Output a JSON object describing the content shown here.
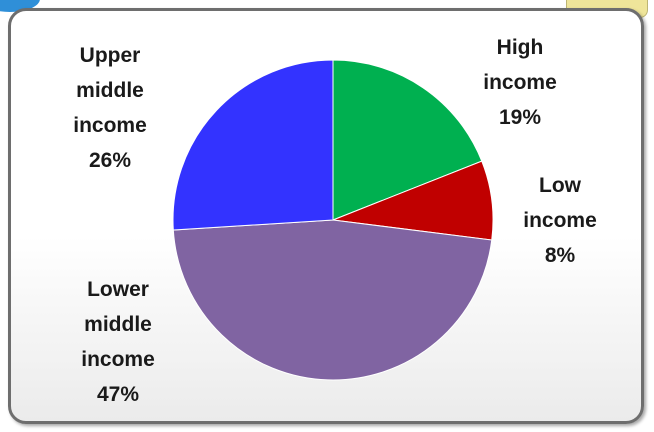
{
  "chart_data": {
    "type": "pie",
    "title": "",
    "slices": [
      {
        "label_lines": [
          "High",
          "income"
        ],
        "value": 19,
        "value_label": "19%",
        "color": "#00b050"
      },
      {
        "label_lines": [
          "Low",
          "income"
        ],
        "value": 8,
        "value_label": "8%",
        "color": "#c00000"
      },
      {
        "label_lines": [
          "Lower",
          "middle",
          "income"
        ],
        "value": 47,
        "value_label": "47%",
        "color": "#8064a2"
      },
      {
        "label_lines": [
          "Upper",
          "middle",
          "income"
        ],
        "value": 26,
        "value_label": "26%",
        "color": "#3333ff"
      }
    ],
    "start_angle_deg": 0,
    "direction": "clockwise",
    "legend": "none"
  }
}
